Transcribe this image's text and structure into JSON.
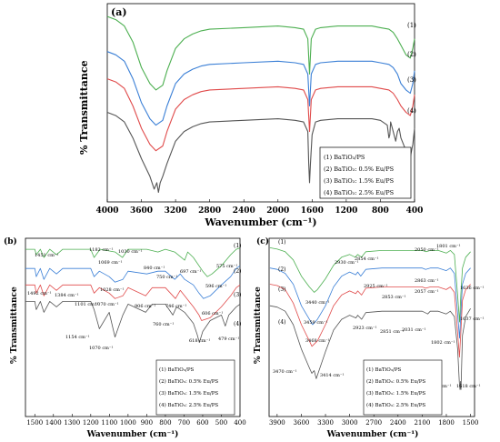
{
  "chart_data": [
    {
      "panel": "(a)",
      "type": "line",
      "xlabel": "Wavenumber (cm⁻¹)",
      "ylabel": "% Transmittance",
      "xlim": [
        4000,
        400
      ],
      "x_reversed": true,
      "xticks": [
        4000,
        3600,
        3200,
        2800,
        2400,
        2000,
        1600,
        1200,
        800,
        400
      ],
      "legend_position": "bottom-right",
      "legend": [
        "(1) BaTiO₃/PS",
        "(2) BaTiO₃: 0.5% Eu/PS",
        "(3) BaTiO₃: 1.5% Eu/PS",
        "(4) BaTiO₃: 2.5% Eu/PS"
      ],
      "series": [
        {
          "name": "(1)",
          "color": "#4caf50",
          "x": [
            4000,
            3900,
            3800,
            3700,
            3600,
            3500,
            3430,
            3350,
            3300,
            3200,
            3100,
            3000,
            2900,
            2800,
            2400,
            2000,
            1800,
            1700,
            1650,
            1630,
            1610,
            1560,
            1500,
            1300,
            1100,
            900,
            800,
            700,
            650,
            600,
            560,
            500,
            450,
            420,
            400
          ],
          "y": [
            94,
            92,
            88,
            78,
            62,
            52,
            48,
            51,
            60,
            74,
            80,
            83,
            85,
            86,
            87,
            88,
            87,
            86,
            80,
            58,
            80,
            86,
            87,
            88,
            88,
            88,
            87,
            86,
            84,
            80,
            76,
            70,
            68,
            74,
            80
          ]
        },
        {
          "name": "(2)",
          "color": "#3a7fd6",
          "x": [
            4000,
            3900,
            3800,
            3700,
            3600,
            3500,
            3430,
            3350,
            3300,
            3200,
            3100,
            3000,
            2900,
            2800,
            2400,
            2000,
            1800,
            1700,
            1650,
            1630,
            1610,
            1560,
            1500,
            1300,
            1100,
            900,
            800,
            700,
            650,
            600,
            560,
            500,
            450,
            420,
            400
          ],
          "y": [
            72,
            70,
            66,
            55,
            40,
            30,
            26,
            29,
            38,
            52,
            58,
            61,
            63,
            64,
            65,
            66,
            65,
            64,
            58,
            38,
            58,
            64,
            65,
            66,
            66,
            66,
            65,
            64,
            62,
            58,
            52,
            48,
            46,
            52,
            60
          ]
        },
        {
          "name": "(3)",
          "color": "#e04a4a",
          "x": [
            4000,
            3900,
            3800,
            3700,
            3600,
            3500,
            3430,
            3350,
            3300,
            3200,
            3100,
            3000,
            2900,
            2800,
            2400,
            2000,
            1800,
            1700,
            1650,
            1630,
            1610,
            1560,
            1500,
            1300,
            1100,
            900,
            800,
            700,
            650,
            600,
            560,
            500,
            450,
            420,
            400
          ],
          "y": [
            55,
            53,
            49,
            38,
            24,
            14,
            10,
            13,
            22,
            36,
            42,
            45,
            47,
            48,
            49,
            50,
            49,
            48,
            42,
            22,
            42,
            48,
            49,
            50,
            50,
            50,
            49,
            48,
            46,
            42,
            38,
            34,
            32,
            38,
            45
          ]
        },
        {
          "name": "(4)",
          "color": "#555555",
          "x": [
            4000,
            3900,
            3800,
            3700,
            3600,
            3500,
            3450,
            3420,
            3400,
            3380,
            3350,
            3300,
            3200,
            3100,
            3000,
            2900,
            2800,
            2400,
            2000,
            1800,
            1700,
            1650,
            1640,
            1630,
            1620,
            1600,
            1560,
            1500,
            1300,
            1100,
            900,
            800,
            720,
            700,
            690,
            680,
            660,
            620,
            600,
            580,
            560,
            500,
            450,
            420,
            400
          ],
          "y": [
            34,
            32,
            28,
            18,
            5,
            -6,
            -14,
            -10,
            -16,
            -10,
            -6,
            2,
            16,
            22,
            25,
            27,
            28,
            29,
            30,
            29,
            28,
            22,
            2,
            -10,
            2,
            20,
            28,
            29,
            30,
            30,
            30,
            29,
            26,
            18,
            20,
            28,
            24,
            16,
            22,
            24,
            18,
            10,
            6,
            14,
            24
          ]
        }
      ]
    },
    {
      "panel": "(b)",
      "type": "line",
      "xlabel": "Wavenumber (cm⁻¹)",
      "ylabel": "% Transmittance",
      "xlim": [
        1550,
        400
      ],
      "x_reversed": true,
      "xticks": [
        1500,
        1400,
        1300,
        1200,
        1100,
        1000,
        900,
        800,
        700,
        600,
        500,
        400
      ],
      "legend_position": "bottom-right",
      "legend": [
        "(1) BaTiO₃/PS",
        "(2) BaTiO₃: 0.5% Eu/PS",
        "(3) BaTiO₃: 1.5% Eu/PS",
        "(4) BaTiO₃: 2.5% Eu/PS"
      ],
      "annotations": [
        "1451 cm⁻¹",
        "1182 cm⁻¹",
        "1030 cm⁻¹",
        "1069 cm⁻¹",
        "840 cm⁻¹",
        "697 cm⁻¹",
        "575 cm⁻¹",
        "750 cm⁻¹",
        "596 cm⁻¹",
        "1492 cm⁻¹",
        "1384 cm⁻¹",
        "1101 cm⁻¹",
        "1028 cm⁻¹",
        "1070 cm⁻¹",
        "906 cm⁻¹",
        "746 cm⁻¹",
        "606 cm⁻¹",
        "760 cm⁻¹",
        "618 cm⁻¹",
        "479 cm⁻¹",
        "1154 cm⁻¹",
        "1070 cm⁻¹"
      ],
      "series": [
        {
          "name": "(1)",
          "color": "#4caf50",
          "x": [
            1550,
            1500,
            1492,
            1470,
            1451,
            1420,
            1384,
            1350,
            1200,
            1182,
            1150,
            1069,
            1030,
            1000,
            900,
            840,
            800,
            750,
            697,
            680,
            650,
            600,
            575,
            550,
            500,
            450,
            420,
            400
          ],
          "y": [
            92,
            92,
            88,
            92,
            86,
            92,
            88,
            92,
            92,
            86,
            92,
            90,
            86,
            92,
            92,
            90,
            92,
            90,
            84,
            90,
            86,
            76,
            72,
            74,
            80,
            88,
            92,
            93
          ]
        },
        {
          "name": "(2)",
          "color": "#3a7fd6",
          "x": [
            1550,
            1500,
            1492,
            1470,
            1451,
            1420,
            1384,
            1350,
            1200,
            1182,
            1154,
            1101,
            1070,
            1028,
            1000,
            900,
            840,
            800,
            750,
            720,
            697,
            650,
            620,
            596,
            560,
            500,
            450,
            420,
            400
          ],
          "y": [
            78,
            78,
            72,
            78,
            70,
            78,
            74,
            78,
            78,
            72,
            76,
            72,
            68,
            70,
            76,
            74,
            76,
            76,
            70,
            74,
            70,
            66,
            60,
            56,
            58,
            66,
            72,
            78,
            80
          ]
        },
        {
          "name": "(3)",
          "color": "#e04a4a",
          "x": [
            1550,
            1500,
            1492,
            1470,
            1451,
            1420,
            1384,
            1350,
            1200,
            1182,
            1154,
            1101,
            1070,
            1028,
            1000,
            906,
            870,
            800,
            746,
            720,
            697,
            650,
            620,
            606,
            560,
            500,
            450,
            420,
            400
          ],
          "y": [
            66,
            66,
            60,
            66,
            58,
            66,
            62,
            66,
            66,
            60,
            64,
            60,
            56,
            58,
            64,
            58,
            64,
            64,
            56,
            62,
            58,
            50,
            44,
            40,
            42,
            50,
            58,
            64,
            66
          ]
        },
        {
          "name": "(4)",
          "color": "#555555",
          "x": [
            1550,
            1500,
            1492,
            1470,
            1451,
            1420,
            1384,
            1350,
            1200,
            1182,
            1154,
            1101,
            1070,
            1028,
            1000,
            906,
            870,
            800,
            760,
            740,
            697,
            650,
            630,
            618,
            600,
            560,
            500,
            479,
            460,
            420,
            400
          ],
          "y": [
            54,
            54,
            48,
            54,
            46,
            54,
            50,
            54,
            54,
            48,
            34,
            46,
            28,
            44,
            52,
            46,
            52,
            52,
            44,
            50,
            46,
            38,
            30,
            24,
            32,
            40,
            44,
            36,
            44,
            50,
            52
          ]
        }
      ]
    },
    {
      "panel": "(c)",
      "type": "line",
      "xlabel": "Wavenumber (cm⁻¹)",
      "ylabel": "% Transmittance",
      "xlim": [
        4000,
        1450
      ],
      "x_reversed": true,
      "xticks": [
        3900,
        3600,
        3300,
        3000,
        2700,
        2400,
        2100,
        1800,
        1500
      ],
      "legend_position": "bottom-right",
      "legend": [
        "(1) BaTiO₃/PS",
        "(2) BaTiO₃: 0.5% Eu/PS",
        "(3) BaTiO₃: 1.5% Eu/PS",
        "(4) BaTiO₃: 2.5% Eu/PS"
      ],
      "annotations": [
        "2930 cm⁻¹",
        "2854 cm⁻¹",
        "2050 cm⁻¹",
        "1801 cm⁻¹",
        "2925 cm⁻¹",
        "2853 cm⁻¹",
        "2863 cm⁻¹",
        "2057 cm⁻¹",
        "1636 cm⁻¹",
        "3440 cm⁻¹",
        "3459 cm⁻¹",
        "3468 cm⁻¹",
        "2923 cm⁻¹",
        "2851 cm⁻¹",
        "2031 cm⁻¹",
        "1802 cm⁻¹",
        "1637 cm⁻¹",
        "3470 cm⁻¹",
        "3414 cm⁻¹",
        "1630 cm⁻¹",
        "1618 cm⁻¹"
      ],
      "series": [
        {
          "name": "(1)",
          "color": "#4caf50",
          "x": [
            3990,
            3900,
            3800,
            3700,
            3600,
            3500,
            3440,
            3400,
            3300,
            3200,
            3100,
            3000,
            2930,
            2900,
            2854,
            2800,
            2600,
            2400,
            2200,
            2100,
            2050,
            2000,
            1900,
            1801,
            1750,
            1700,
            1660,
            1636,
            1620,
            1600,
            1560,
            1500
          ],
          "y": [
            95,
            94,
            92,
            86,
            74,
            66,
            62,
            64,
            72,
            82,
            88,
            90,
            88,
            90,
            88,
            92,
            93,
            93,
            93,
            93,
            92,
            93,
            93,
            91,
            93,
            90,
            60,
            40,
            60,
            80,
            88,
            92
          ]
        },
        {
          "name": "(2)",
          "color": "#3a7fd6",
          "x": [
            3990,
            3900,
            3800,
            3700,
            3600,
            3500,
            3459,
            3400,
            3300,
            3200,
            3100,
            3000,
            2925,
            2900,
            2863,
            2800,
            2600,
            2400,
            2200,
            2100,
            2057,
            2000,
            1900,
            1801,
            1750,
            1700,
            1660,
            1636,
            1620,
            1600,
            1560,
            1500
          ],
          "y": [
            80,
            79,
            76,
            68,
            52,
            42,
            38,
            42,
            52,
            66,
            74,
            77,
            75,
            77,
            74,
            79,
            80,
            80,
            80,
            80,
            79,
            80,
            80,
            78,
            80,
            76,
            46,
            28,
            46,
            68,
            76,
            80
          ]
        },
        {
          "name": "(3)",
          "color": "#e04a4a",
          "x": [
            3990,
            3900,
            3800,
            3700,
            3600,
            3500,
            3468,
            3400,
            3300,
            3200,
            3100,
            3000,
            2925,
            2900,
            2853,
            2800,
            2600,
            2400,
            2200,
            2100,
            2057,
            2000,
            1900,
            1802,
            1750,
            1700,
            1660,
            1637,
            1620,
            1600,
            1560,
            1500
          ],
          "y": [
            68,
            67,
            64,
            54,
            38,
            26,
            22,
            26,
            38,
            52,
            60,
            63,
            61,
            63,
            60,
            65,
            66,
            66,
            66,
            66,
            65,
            66,
            66,
            64,
            66,
            62,
            32,
            14,
            32,
            56,
            64,
            68
          ]
        },
        {
          "name": "(4)",
          "color": "#555555",
          "x": [
            3990,
            3900,
            3800,
            3700,
            3600,
            3500,
            3470,
            3440,
            3414,
            3380,
            3300,
            3200,
            3100,
            3000,
            2923,
            2900,
            2851,
            2800,
            2600,
            2400,
            2200,
            2100,
            2031,
            2000,
            1900,
            1802,
            1750,
            1700,
            1660,
            1640,
            1630,
            1624,
            1618,
            1600,
            1560,
            1500
          ],
          "y": [
            52,
            51,
            48,
            38,
            20,
            6,
            2,
            4,
            -2,
            4,
            18,
            34,
            42,
            45,
            43,
            45,
            42,
            47,
            48,
            48,
            48,
            48,
            46,
            48,
            48,
            46,
            48,
            44,
            20,
            -4,
            -10,
            -4,
            -10,
            30,
            44,
            50
          ]
        }
      ]
    }
  ],
  "panel_a": {
    "label": "(a)",
    "ylabel": "% Transmittance",
    "xlabel": "Wavenumber (cm⁻¹)",
    "series_labels": [
      "(1)",
      "(2)",
      "(3)",
      "(4)"
    ],
    "legend": [
      "(1) BaTiO₃/PS",
      "(2) BaTiO₃: 0.5% Eu/PS",
      "(3) BaTiO₃: 1.5% Eu/PS",
      "(4) BaTiO₃: 2.5% Eu/PS"
    ]
  },
  "panel_b": {
    "label": "(b)",
    "ylabel": "% Transmittance",
    "xlabel": "Wavenumber (cm⁻¹)",
    "series_labels": [
      "(1)",
      "(2)",
      "(3)",
      "(4)"
    ],
    "legend": [
      "(1) BaTiO₃/PS",
      "(2) BaTiO₃: 0.5% Eu/PS",
      "(3) BaTiO₃: 1.5% Eu/PS",
      "(4) BaTiO₃: 2.5% Eu/PS"
    ]
  },
  "panel_c": {
    "label": "(c)",
    "ylabel": "% Transmittance",
    "xlabel": "Wavenumber (cm⁻¹)",
    "series_labels": [
      "(1)",
      "(2)",
      "(3)",
      "(4)"
    ],
    "legend": [
      "(1) BaTiO₃/PS",
      "(2) BaTiO₃: 0.5% Eu/PS",
      "(3) BaTiO₃: 1.5% Eu/PS",
      "(4) BaTiO₃: 2.5% Eu/PS"
    ]
  }
}
